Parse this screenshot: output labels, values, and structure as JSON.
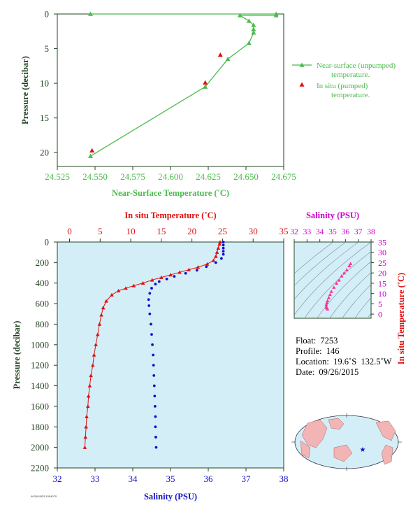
{
  "colors": {
    "near_surface": "#4cbb4c",
    "insitu_red": "#e01010",
    "salinity_blue": "#1010cc",
    "salinity_axis": "#cc00cc",
    "pink": "#ff3399",
    "plot_bg": "#d4eef8",
    "axis_dark": "#224422"
  },
  "chart_data": [
    {
      "id": "near_surface",
      "type": "line",
      "xlabel": "Near-Surface Temperature (˚C)",
      "ylabel": "Pressure (decibar)",
      "xlim": [
        24.525,
        24.675
      ],
      "ylim": [
        0,
        22
      ],
      "y_reversed": true,
      "xticks": [
        "24.525",
        "24.550",
        "24.575",
        "24.600",
        "24.625",
        "24.650",
        "24.675"
      ],
      "xtick_values": [
        24.525,
        24.55,
        24.575,
        24.6,
        24.625,
        24.65,
        24.675
      ],
      "yticks": [
        "0",
        "5",
        "10",
        "15",
        "20"
      ],
      "ytick_values": [
        0,
        5,
        10,
        15,
        20
      ],
      "series": [
        {
          "name": "Near-surface (unpumped) temperature.",
          "marker": "triangle",
          "points": [
            [
              24.547,
              0.0
            ],
            [
              24.67,
              0.0
            ],
            [
              24.67,
              0.2
            ],
            [
              24.646,
              0.2
            ],
            [
              24.652,
              1.0
            ],
            [
              24.655,
              1.6
            ],
            [
              24.655,
              2.2
            ],
            [
              24.655,
              2.7
            ],
            [
              24.652,
              4.2
            ],
            [
              24.638,
              6.5
            ],
            [
              24.623,
              10.5
            ],
            [
              24.547,
              20.5
            ]
          ]
        },
        {
          "name": "In situ (pumped) temperature.",
          "marker": "triangle-red",
          "points": [
            [
              24.548,
              19.7
            ],
            [
              24.623,
              9.9
            ],
            [
              24.633,
              5.9
            ]
          ]
        }
      ],
      "legend": [
        "Near-surface (unpumped)",
        "temperature.",
        "In situ (pumped)",
        "temperature."
      ]
    },
    {
      "id": "profile",
      "type": "line",
      "ylabel": "Pressure (decibar)",
      "top_xlabel": "In situ Temperature (˚C)",
      "bottom_xlabel": "Salinity (PSU)",
      "temp_lim": [
        -2,
        35
      ],
      "sal_lim": [
        32,
        38
      ],
      "ylim": [
        0,
        2200
      ],
      "y_reversed": true,
      "temp_ticks": [
        "0",
        "5",
        "10",
        "15",
        "20",
        "25",
        "30",
        "35"
      ],
      "temp_tick_values": [
        0,
        5,
        10,
        15,
        20,
        25,
        30,
        35
      ],
      "sal_ticks": [
        "32",
        "33",
        "34",
        "35",
        "36",
        "37",
        "38"
      ],
      "sal_tick_values": [
        32,
        33,
        34,
        35,
        36,
        37,
        38
      ],
      "pressure_ticks": [
        "0",
        "200",
        "400",
        "600",
        "800",
        "1000",
        "1200",
        "1400",
        "1600",
        "1800",
        "2000",
        "2200"
      ],
      "pressure_tick_values": [
        0,
        200,
        400,
        600,
        800,
        1000,
        1200,
        1400,
        1600,
        1800,
        2000,
        2200
      ],
      "temperature_profile": [
        [
          24.6,
          0
        ],
        [
          24.5,
          20
        ],
        [
          24.3,
          60
        ],
        [
          24.1,
          100
        ],
        [
          23.9,
          140
        ],
        [
          23.5,
          180
        ],
        [
          22.5,
          215
        ],
        [
          21.0,
          245
        ],
        [
          19.5,
          270
        ],
        [
          18.0,
          295
        ],
        [
          16.5,
          320
        ],
        [
          15.0,
          345
        ],
        [
          13.5,
          370
        ],
        [
          12.0,
          400
        ],
        [
          10.5,
          425
        ],
        [
          9.2,
          450
        ],
        [
          8.0,
          475
        ],
        [
          6.9,
          515
        ],
        [
          6.0,
          575
        ],
        [
          5.5,
          640
        ],
        [
          5.2,
          710
        ],
        [
          4.9,
          800
        ],
        [
          4.6,
          900
        ],
        [
          4.3,
          1000
        ],
        [
          4.0,
          1100
        ],
        [
          3.8,
          1200
        ],
        [
          3.5,
          1300
        ],
        [
          3.3,
          1400
        ],
        [
          3.1,
          1500
        ],
        [
          3.0,
          1600
        ],
        [
          2.8,
          1700
        ],
        [
          2.7,
          1800
        ],
        [
          2.6,
          1900
        ],
        [
          2.5,
          2000
        ]
      ],
      "salinity_profile": [
        [
          36.4,
          0
        ],
        [
          36.4,
          30
        ],
        [
          36.4,
          60
        ],
        [
          36.4,
          90
        ],
        [
          36.4,
          120
        ],
        [
          36.35,
          160
        ],
        [
          36.2,
          200
        ],
        [
          35.95,
          240
        ],
        [
          35.7,
          275
        ],
        [
          35.4,
          305
        ],
        [
          35.1,
          335
        ],
        [
          34.9,
          360
        ],
        [
          34.7,
          385
        ],
        [
          34.6,
          410
        ],
        [
          34.5,
          450
        ],
        [
          34.45,
          500
        ],
        [
          34.42,
          560
        ],
        [
          34.43,
          620
        ],
        [
          34.45,
          700
        ],
        [
          34.48,
          800
        ],
        [
          34.5,
          900
        ],
        [
          34.52,
          1000
        ],
        [
          34.54,
          1100
        ],
        [
          34.55,
          1200
        ],
        [
          34.56,
          1300
        ],
        [
          34.57,
          1400
        ],
        [
          34.58,
          1500
        ],
        [
          34.59,
          1600
        ],
        [
          34.6,
          1700
        ],
        [
          34.6,
          1800
        ],
        [
          34.61,
          1900
        ],
        [
          34.62,
          2000
        ]
      ]
    },
    {
      "id": "ts_diagram",
      "type": "scatter",
      "xlabel": "Salinity (PSU)",
      "ylabel": "In situ Temperature (˚C)",
      "xlim": [
        32,
        38
      ],
      "ylim": [
        -2,
        35
      ],
      "xticks": [
        "32",
        "33",
        "34",
        "35",
        "36",
        "37",
        "38"
      ],
      "xtick_values": [
        32,
        33,
        34,
        35,
        36,
        37,
        38
      ],
      "yticks": [
        "0",
        "5",
        "10",
        "15",
        "20",
        "25",
        "30",
        "35"
      ],
      "ytick_values": [
        0,
        5,
        10,
        15,
        20,
        25,
        30,
        35
      ],
      "points": [
        [
          36.4,
          24.5
        ],
        [
          36.3,
          23.5
        ],
        [
          36.1,
          21.5
        ],
        [
          35.9,
          20.0
        ],
        [
          35.7,
          18.5
        ],
        [
          35.5,
          16.5
        ],
        [
          35.3,
          15.0
        ],
        [
          35.1,
          13.0
        ],
        [
          34.9,
          11.0
        ],
        [
          34.8,
          9.5
        ],
        [
          34.7,
          8.0
        ],
        [
          34.6,
          6.5
        ],
        [
          34.55,
          5.5
        ],
        [
          34.5,
          4.5
        ],
        [
          34.5,
          3.5
        ],
        [
          34.55,
          3.0
        ],
        [
          34.6,
          2.5
        ]
      ]
    }
  ],
  "float_info": {
    "float": "Float:  7253",
    "profile": "Profile:  146",
    "location": "Location:  19.6˚S  132.5˚W",
    "date": "Date:  09/26/2015"
  },
  "footer_code": "A01504025.1004070"
}
